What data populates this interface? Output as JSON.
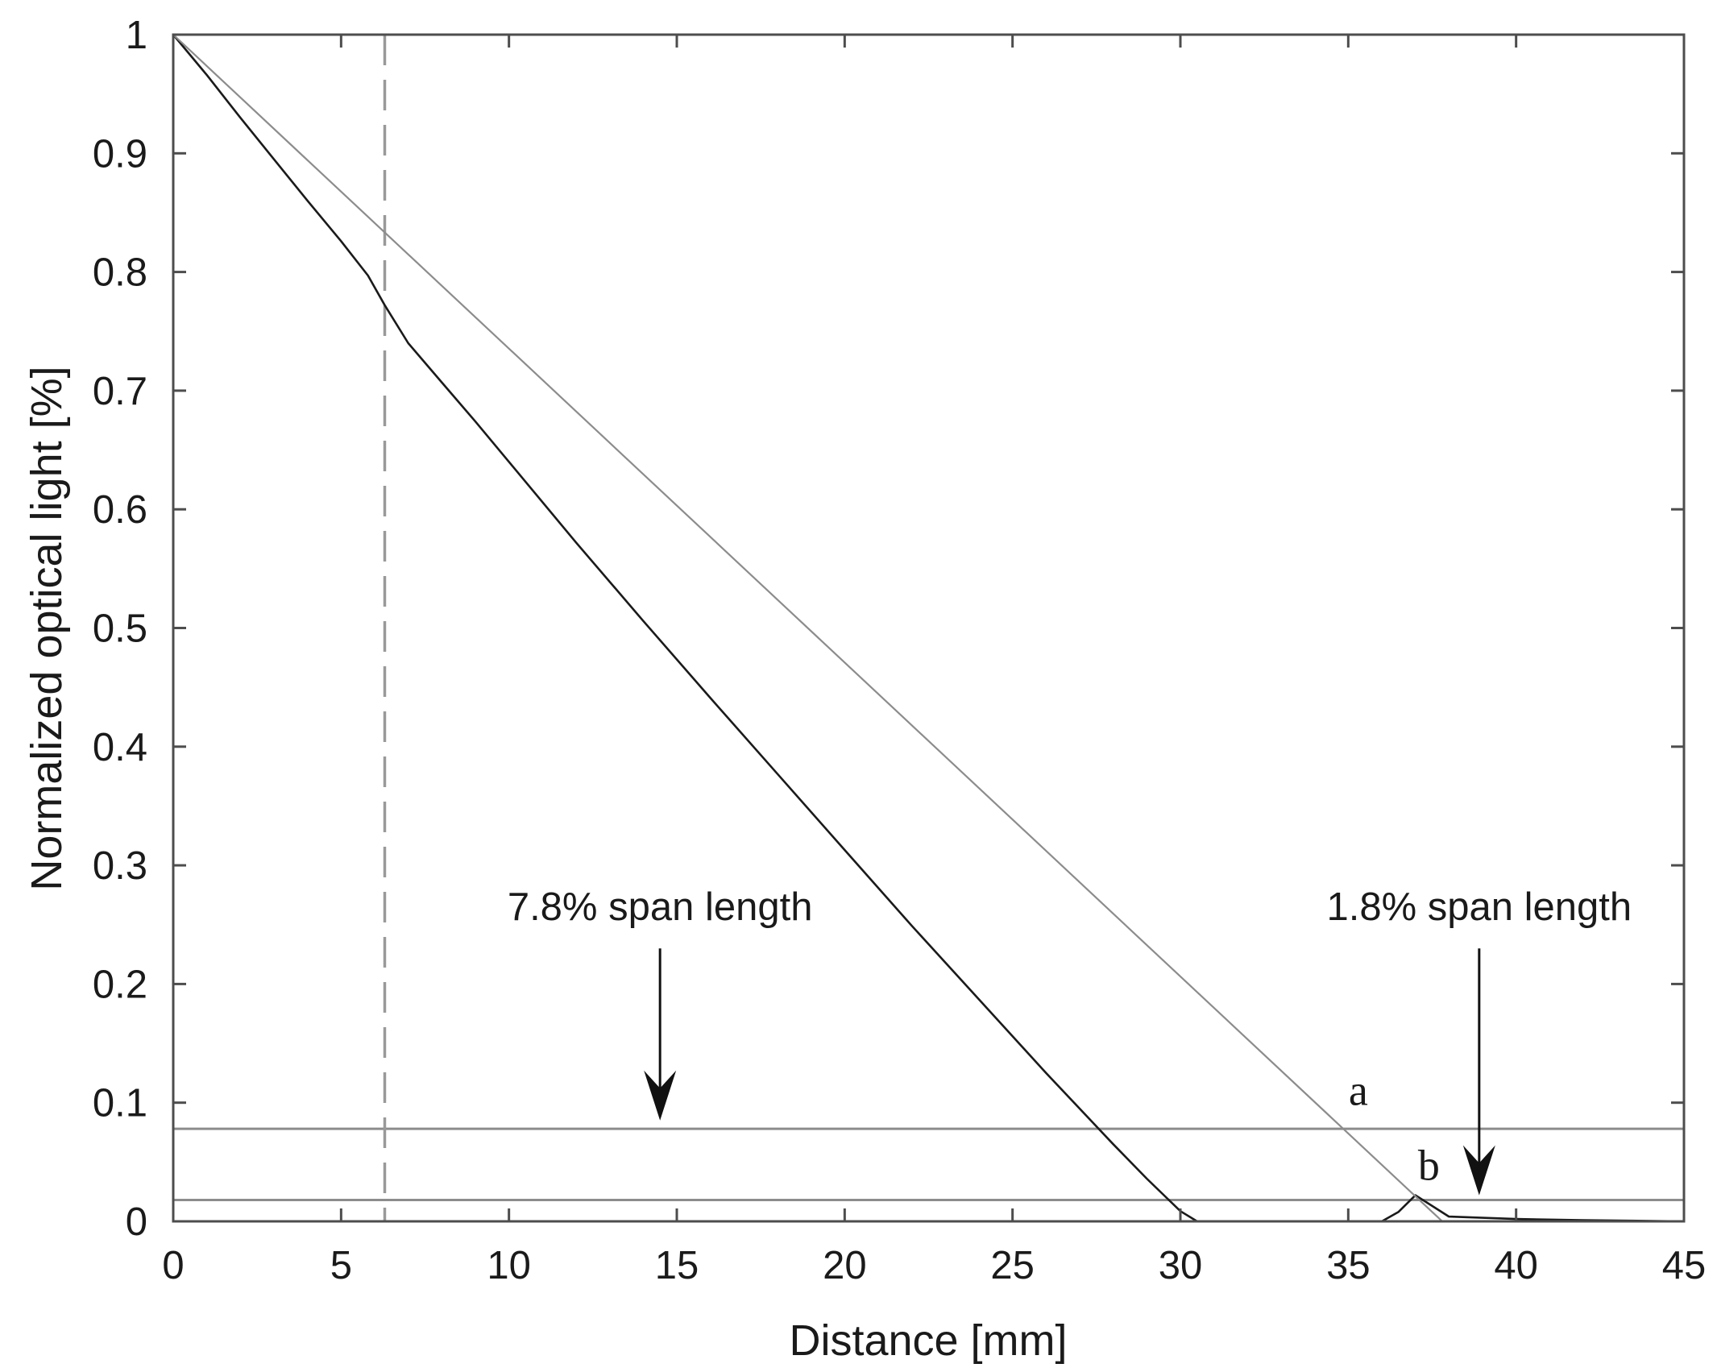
{
  "chart_data": {
    "type": "line",
    "xlabel": "Distance [mm]",
    "ylabel": "Normalized optical light [%]",
    "xlim": [
      0,
      45
    ],
    "ylim": [
      0,
      1
    ],
    "x_ticks": [
      0,
      5,
      10,
      15,
      20,
      25,
      30,
      35,
      40,
      45
    ],
    "y_ticks": [
      0,
      0.1,
      0.2,
      0.3,
      0.4,
      0.5,
      0.6,
      0.7,
      0.8,
      0.9,
      1
    ],
    "x_tick_labels": [
      "0",
      "5",
      "10",
      "15",
      "20",
      "25",
      "30",
      "35",
      "40",
      "45"
    ],
    "y_tick_labels": [
      "0",
      "0.1",
      "0.2",
      "0.3",
      "0.4",
      "0.5",
      "0.6",
      "0.7",
      "0.8",
      "0.9",
      "1"
    ],
    "grid": false,
    "series": [
      {
        "color": "#1a1a1a",
        "x": [
          0,
          1,
          2,
          3,
          4,
          5,
          5.8,
          6.3,
          7,
          8,
          9,
          10,
          12,
          14,
          16,
          18,
          20,
          22,
          24,
          26,
          28,
          29,
          30,
          30.5,
          31,
          31.5,
          32,
          32.5,
          33,
          33.5,
          34,
          34.5,
          35,
          35.5,
          36,
          36.5,
          37,
          38,
          39,
          40,
          42,
          45
        ],
        "y": [
          1,
          0.966,
          0.93,
          0.895,
          0.86,
          0.826,
          0.797,
          0.772,
          0.74,
          0.707,
          0.674,
          0.64,
          0.572,
          0.506,
          0.441,
          0.377,
          0.313,
          0.249,
          0.187,
          0.125,
          0.065,
          0.036,
          0.0086,
          -0.005,
          -0.017,
          -0.025,
          -0.03,
          -0.034,
          -0.036,
          -0.036,
          -0.034,
          -0.03,
          -0.024,
          -0.016,
          -0.006,
          0.008,
          0.022,
          0.004,
          0.003,
          0.002,
          0.001,
          0.0
        ]
      },
      {
        "color": "#8c8c8c",
        "x": [
          0,
          37.8
        ],
        "y": [
          1,
          0.0
        ]
      }
    ],
    "reference_lines": {
      "horizontal": [
        0.078,
        0.018
      ],
      "vertical_dashed": 6.3
    },
    "annotations": [
      {
        "text": "7.8% span length",
        "arrow_x": 14.5,
        "arrow_from_y": 0.23,
        "arrow_to_y": 0.085
      },
      {
        "text": "1.8% span length",
        "arrow_x": 38.9,
        "arrow_from_y": 0.23,
        "arrow_to_y": 0.022
      }
    ],
    "point_labels": [
      {
        "text": "a",
        "x": 35.3,
        "y": 0.098
      },
      {
        "text": "b",
        "x": 37.4,
        "y": 0.035
      }
    ]
  }
}
